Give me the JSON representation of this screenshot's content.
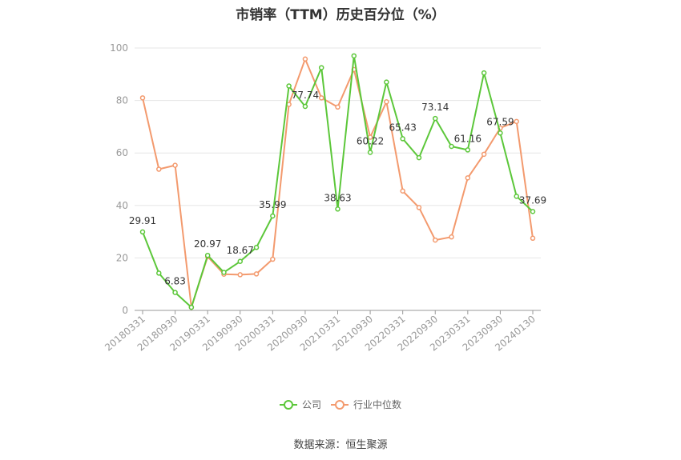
{
  "source_note": "数据来源：恒生聚源",
  "chart_data": {
    "type": "line",
    "title": "市销率（TTM）历史百分位（%）",
    "xlabel": "",
    "ylabel": "",
    "ylim": [
      0,
      100
    ],
    "yticks": [
      0,
      20,
      40,
      60,
      80,
      100
    ],
    "grid": true,
    "legend_position": "bottom",
    "x_tick_labels": [
      "20180331",
      "20180930",
      "20190331",
      "20190930",
      "20200331",
      "20200930",
      "20210331",
      "20210930",
      "20220331",
      "20220930",
      "20230331",
      "20230930",
      "20240130"
    ],
    "x_tick_indices": [
      0,
      2,
      4,
      6,
      8,
      10,
      12,
      14,
      16,
      18,
      20,
      22,
      24
    ],
    "series": [
      {
        "name": "公司",
        "color": "#5cc73a",
        "values": [
          29.91,
          14.2,
          6.83,
          1.2,
          20.97,
          14.5,
          18.67,
          24.0,
          35.99,
          85.5,
          77.74,
          92.5,
          38.63,
          97.0,
          60.22,
          87.0,
          65.43,
          58.2,
          73.14,
          62.5,
          61.16,
          90.5,
          67.59,
          43.5,
          37.69
        ],
        "labels": {
          "0": "29.91",
          "2": "6.83",
          "4": "20.97",
          "6": "18.67",
          "8": "35.99",
          "10": "77.74",
          "12": "38.63",
          "14": "60.22",
          "16": "65.43",
          "18": "73.14",
          "20": "61.16",
          "22": "67.59",
          "24": "37.69"
        }
      },
      {
        "name": "行业中位数",
        "color": "#f39a6e",
        "values": [
          81.0,
          53.8,
          55.3,
          1.2,
          20.5,
          13.8,
          13.6,
          13.9,
          19.5,
          78.5,
          95.8,
          81.0,
          77.5,
          91.8,
          66.0,
          79.5,
          45.5,
          39.2,
          26.8,
          28.0,
          50.5,
          59.5,
          69.5,
          72.0,
          27.5
        ]
      }
    ]
  }
}
